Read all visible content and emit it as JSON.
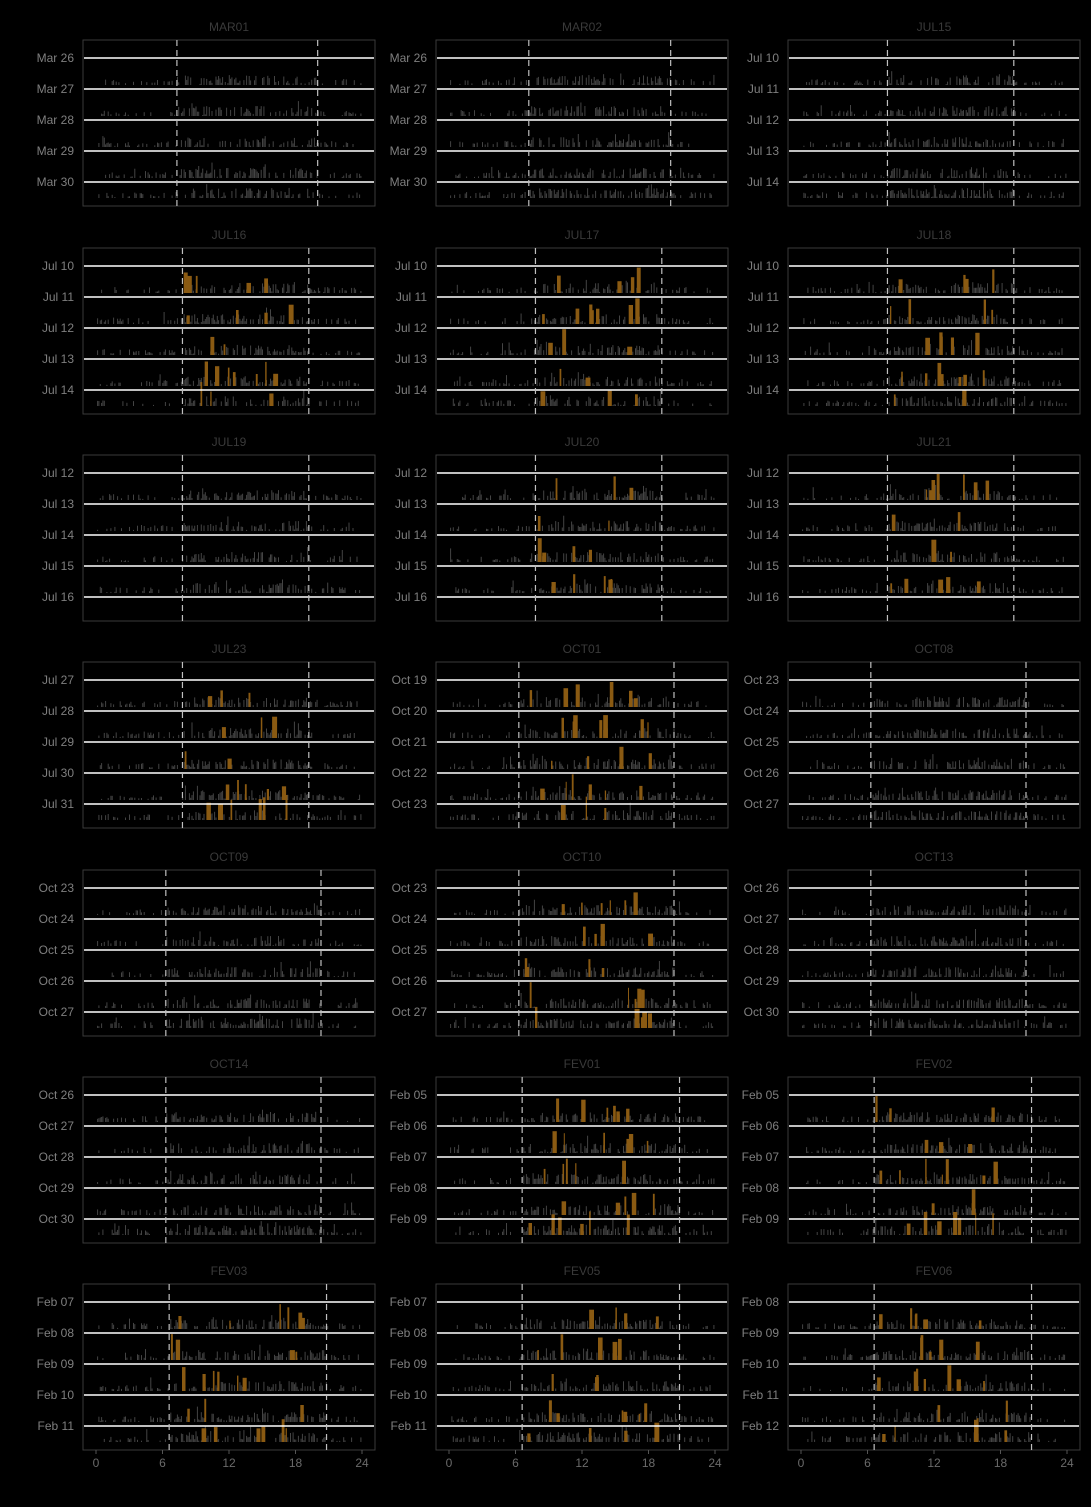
{
  "figure": {
    "background": "#000000",
    "panel_border": "#3a3a3a",
    "baseline_color": "#ffffff",
    "bar_color": "#444444",
    "highlight_color": "#8a5a12",
    "dash_color": "#bfbfbf"
  },
  "chart_data": {
    "type": "bar",
    "facet": "grid 3 columns x 7 rows",
    "x_range": [
      0,
      24
    ],
    "x_ticks": [
      "0",
      "6",
      "12",
      "18",
      "24"
    ],
    "grid": false,
    "panels": [
      {
        "id": "MAR01",
        "days": [
          "Mar 26",
          "Mar 27",
          "Mar 28",
          "Mar 29",
          "Mar 30"
        ],
        "markers": [
          7.3,
          20.0
        ],
        "highlight": false
      },
      {
        "id": "MAR02",
        "days": [
          "Mar 26",
          "Mar 27",
          "Mar 28",
          "Mar 29",
          "Mar 30"
        ],
        "markers": [
          7.2,
          20.0
        ],
        "highlight": false
      },
      {
        "id": "JUL15",
        "days": [
          "Jul 10",
          "Jul 11",
          "Jul 12",
          "Jul 13",
          "Jul 14"
        ],
        "markers": [
          7.8,
          19.2
        ],
        "highlight": false
      },
      {
        "id": "JUL16",
        "days": [
          "Jul 10",
          "Jul 11",
          "Jul 12",
          "Jul 13",
          "Jul 14"
        ],
        "markers": [
          7.8,
          19.2
        ],
        "highlight": true
      },
      {
        "id": "JUL17",
        "days": [
          "Jul 10",
          "Jul 11",
          "Jul 12",
          "Jul 13",
          "Jul 14"
        ],
        "markers": [
          7.8,
          19.2
        ],
        "highlight": true
      },
      {
        "id": "JUL18",
        "days": [
          "Jul 10",
          "Jul 11",
          "Jul 12",
          "Jul 13",
          "Jul 14"
        ],
        "markers": [
          7.8,
          19.2
        ],
        "highlight": true
      },
      {
        "id": "JUL19",
        "days": [
          "Jul 12",
          "Jul 13",
          "Jul 14",
          "Jul 15",
          "Jul 16"
        ],
        "markers": [
          7.8,
          19.2
        ],
        "highlight": false
      },
      {
        "id": "JUL20",
        "days": [
          "Jul 12",
          "Jul 13",
          "Jul 14",
          "Jul 15",
          "Jul 16"
        ],
        "markers": [
          7.8,
          19.2
        ],
        "highlight": true
      },
      {
        "id": "JUL21",
        "days": [
          "Jul 12",
          "Jul 13",
          "Jul 14",
          "Jul 15",
          "Jul 16"
        ],
        "markers": [
          7.8,
          19.2
        ],
        "highlight": true
      },
      {
        "id": "JUL23",
        "days": [
          "Jul 27",
          "Jul 28",
          "Jul 29",
          "Jul 30",
          "Jul 31"
        ],
        "markers": [
          7.8,
          19.2
        ],
        "highlight": true
      },
      {
        "id": "OCT01",
        "days": [
          "Oct 19",
          "Oct 20",
          "Oct 21",
          "Oct 22",
          "Oct 23"
        ],
        "markers": [
          6.3,
          20.3
        ],
        "highlight": true
      },
      {
        "id": "OCT08",
        "days": [
          "Oct 23",
          "Oct 24",
          "Oct 25",
          "Oct 26",
          "Oct 27"
        ],
        "markers": [
          6.3,
          20.3
        ],
        "highlight": false
      },
      {
        "id": "OCT09",
        "days": [
          "Oct 23",
          "Oct 24",
          "Oct 25",
          "Oct 26",
          "Oct 27"
        ],
        "markers": [
          6.3,
          20.3
        ],
        "highlight": false
      },
      {
        "id": "OCT10",
        "days": [
          "Oct 23",
          "Oct 24",
          "Oct 25",
          "Oct 26",
          "Oct 27"
        ],
        "markers": [
          6.3,
          20.3
        ],
        "highlight": true
      },
      {
        "id": "OCT13",
        "days": [
          "Oct 26",
          "Oct 27",
          "Oct 28",
          "Oct 29",
          "Oct 30"
        ],
        "markers": [
          6.3,
          20.3
        ],
        "highlight": false
      },
      {
        "id": "OCT14",
        "days": [
          "Oct 26",
          "Oct 27",
          "Oct 28",
          "Oct 29",
          "Oct 30"
        ],
        "markers": [
          6.3,
          20.3
        ],
        "highlight": false
      },
      {
        "id": "FEV01",
        "days": [
          "Feb 05",
          "Feb 06",
          "Feb 07",
          "Feb 08",
          "Feb 09"
        ],
        "markers": [
          6.6,
          20.8
        ],
        "highlight": true
      },
      {
        "id": "FEV02",
        "days": [
          "Feb 05",
          "Feb 06",
          "Feb 07",
          "Feb 08",
          "Feb 09"
        ],
        "markers": [
          6.6,
          20.8
        ],
        "highlight": true
      },
      {
        "id": "FEV03",
        "days": [
          "Feb 07",
          "Feb 08",
          "Feb 09",
          "Feb 10",
          "Feb 11"
        ],
        "markers": [
          6.6,
          20.8
        ],
        "highlight": true
      },
      {
        "id": "FEV05",
        "days": [
          "Feb 07",
          "Feb 08",
          "Feb 09",
          "Feb 10",
          "Feb 11"
        ],
        "markers": [
          6.6,
          20.8
        ],
        "highlight": true
      },
      {
        "id": "FEV06",
        "days": [
          "Feb 08",
          "Feb 09",
          "Feb 10",
          "Feb 11",
          "Feb 12"
        ],
        "markers": [
          6.6,
          20.8
        ],
        "highlight": true
      }
    ]
  }
}
